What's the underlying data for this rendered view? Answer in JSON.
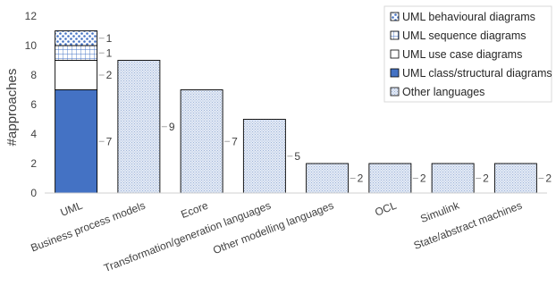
{
  "chart_data": {
    "type": "bar",
    "stacked": true,
    "ylabel": "#approaches",
    "xlabel": "",
    "title": "",
    "ylim": [
      0,
      12
    ],
    "yticks": [
      0,
      2,
      4,
      6,
      8,
      10,
      12
    ],
    "grid": false,
    "legend_position": "top-right",
    "categories": [
      "UML",
      "Business process models",
      "Ecore",
      "Transformation/generation languages",
      "Other modelling languages",
      "OCL",
      "Simulink",
      "State/abstract machines"
    ],
    "series": [
      {
        "name": "UML class/structural diagrams",
        "key": "class",
        "color": "#4472c4",
        "pattern": "solid",
        "values": [
          7,
          0,
          0,
          0,
          0,
          0,
          0,
          0
        ]
      },
      {
        "name": "UML use case diagrams",
        "key": "usecase",
        "color": "#ffffff",
        "pattern": "solid",
        "values": [
          2,
          0,
          0,
          0,
          0,
          0,
          0,
          0
        ]
      },
      {
        "name": "UML sequence diagrams",
        "key": "sequence",
        "color": "#4472c4",
        "pattern": "grid",
        "values": [
          1,
          0,
          0,
          0,
          0,
          0,
          0,
          0
        ]
      },
      {
        "name": "UML behavioural diagrams",
        "key": "behavioural",
        "color": "#4472c4",
        "pattern": "dots",
        "values": [
          1,
          0,
          0,
          0,
          0,
          0,
          0,
          0
        ]
      },
      {
        "name": "Other languages",
        "key": "other",
        "color": "#dae3f3",
        "pattern": "fine",
        "values": [
          0,
          9,
          7,
          5,
          2,
          2,
          2,
          2
        ]
      }
    ],
    "legend_order": [
      "behavioural",
      "sequence",
      "usecase",
      "class",
      "other"
    ],
    "data_labels": [
      [
        {
          "value": "7"
        },
        {
          "value": "2"
        },
        {
          "value": "1"
        },
        {
          "value": "1"
        }
      ],
      [
        {
          "value": "9"
        }
      ],
      [
        {
          "value": "7"
        }
      ],
      [
        {
          "value": "5"
        }
      ],
      [
        {
          "value": "2"
        }
      ],
      [
        {
          "value": "2"
        }
      ],
      [
        {
          "value": "2"
        }
      ],
      [
        {
          "value": "2"
        }
      ]
    ]
  }
}
